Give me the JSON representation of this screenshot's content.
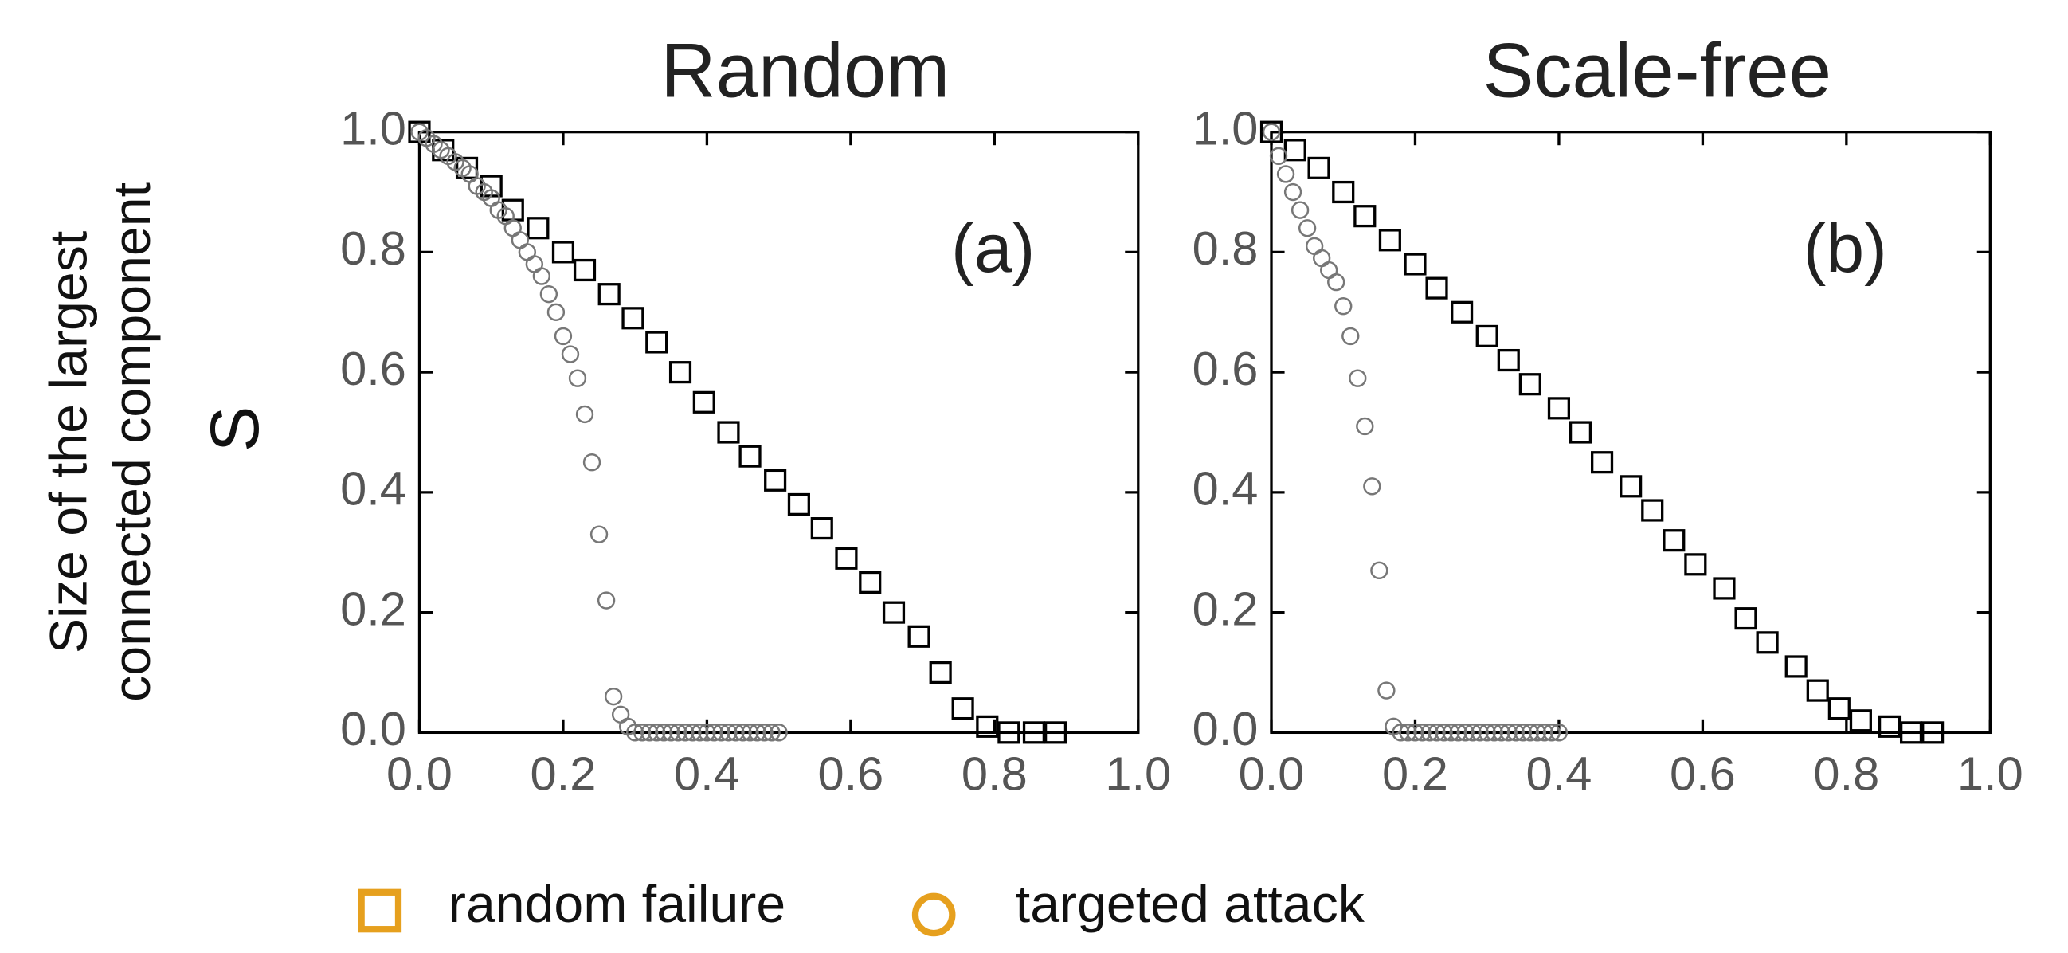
{
  "chart_data": [
    {
      "type": "scatter",
      "title": "Random",
      "annotation": "(a)",
      "ylabel": [
        "Size of the largest",
        "connected component"
      ],
      "ylabel_symbol": "S",
      "xlim": [
        0,
        1
      ],
      "ylim": [
        0,
        1
      ],
      "xticks": [
        {
          "value": 0,
          "label": "0.0"
        },
        0.2,
        0.4,
        0.6,
        0.8,
        {
          "value": 1,
          "label": "1.0"
        }
      ],
      "yticks": [
        {
          "value": 0,
          "label": "0.0"
        },
        0.2,
        0.4,
        0.6,
        0.8,
        {
          "value": 1,
          "label": "1.0"
        }
      ],
      "series": [
        {
          "name": "random failure",
          "marker": "square",
          "color": "#000000",
          "legend_color": "#e6a01e",
          "x": [
            0,
            0.033,
            0.066,
            0.1,
            0.13,
            0.165,
            0.2,
            0.23,
            0.264,
            0.297,
            0.33,
            0.363,
            0.396,
            0.43,
            0.46,
            0.495,
            0.528,
            0.56,
            0.594,
            0.627,
            0.66,
            0.695,
            0.725,
            0.756,
            0.79,
            0.82,
            0.855,
            0.885
          ],
          "values": [
            1.0,
            0.97,
            0.94,
            0.91,
            0.87,
            0.84,
            0.8,
            0.77,
            0.73,
            0.69,
            0.65,
            0.6,
            0.55,
            0.5,
            0.46,
            0.42,
            0.38,
            0.34,
            0.29,
            0.25,
            0.2,
            0.16,
            0.1,
            0.04,
            0.01,
            0,
            0,
            0
          ]
        },
        {
          "name": "targeted attack",
          "marker": "circle",
          "color": "#777777",
          "legend_color": "#e6a01e",
          "x": [
            0,
            0.01,
            0.02,
            0.03,
            0.04,
            0.05,
            0.06,
            0.07,
            0.08,
            0.09,
            0.1,
            0.11,
            0.12,
            0.13,
            0.14,
            0.15,
            0.16,
            0.17,
            0.18,
            0.19,
            0.2,
            0.21,
            0.22,
            0.23,
            0.24,
            0.25,
            0.26,
            0.27,
            0.28,
            0.29,
            0.3,
            0.31,
            0.32,
            0.33,
            0.34,
            0.35,
            0.36,
            0.37,
            0.38,
            0.39,
            0.4,
            0.41,
            0.42,
            0.43,
            0.44,
            0.45,
            0.46,
            0.47,
            0.48,
            0.49,
            0.5
          ],
          "values": [
            1.0,
            0.99,
            0.98,
            0.97,
            0.96,
            0.95,
            0.94,
            0.93,
            0.91,
            0.9,
            0.89,
            0.87,
            0.86,
            0.84,
            0.82,
            0.8,
            0.78,
            0.76,
            0.73,
            0.7,
            0.66,
            0.63,
            0.59,
            0.53,
            0.45,
            0.33,
            0.22,
            0.06,
            0.03,
            0.01,
            0,
            0,
            0,
            0,
            0,
            0,
            0,
            0,
            0,
            0,
            0,
            0,
            0,
            0,
            0,
            0,
            0,
            0,
            0,
            0,
            0
          ]
        }
      ]
    },
    {
      "type": "scatter",
      "title": "Scale-free",
      "annotation": "(b)",
      "xlim": [
        0,
        1
      ],
      "ylim": [
        0,
        1
      ],
      "xticks": [
        {
          "value": 0,
          "label": "0.0"
        },
        0.2,
        0.4,
        0.6,
        0.8,
        {
          "value": 1,
          "label": "1.0"
        }
      ],
      "yticks": [
        {
          "value": 0,
          "label": "0.0"
        },
        0.2,
        0.4,
        0.6,
        0.8,
        {
          "value": 1,
          "label": "1.0"
        }
      ],
      "series": [
        {
          "name": "random failure",
          "marker": "square",
          "color": "#000000",
          "x": [
            0,
            0.033,
            0.066,
            0.1,
            0.13,
            0.165,
            0.2,
            0.23,
            0.265,
            0.3,
            0.33,
            0.36,
            0.4,
            0.43,
            0.46,
            0.5,
            0.53,
            0.56,
            0.59,
            0.63,
            0.66,
            0.69,
            0.73,
            0.76,
            0.79,
            0.82,
            0.86,
            0.89,
            0.92
          ],
          "values": [
            1.0,
            0.97,
            0.94,
            0.9,
            0.86,
            0.82,
            0.78,
            0.74,
            0.7,
            0.66,
            0.62,
            0.58,
            0.54,
            0.5,
            0.45,
            0.41,
            0.37,
            0.32,
            0.28,
            0.24,
            0.19,
            0.15,
            0.11,
            0.07,
            0.04,
            0.02,
            0.01,
            0,
            0
          ]
        },
        {
          "name": "targeted attack",
          "marker": "circle",
          "color": "#777777",
          "x": [
            0,
            0.01,
            0.02,
            0.03,
            0.04,
            0.05,
            0.06,
            0.07,
            0.08,
            0.09,
            0.1,
            0.11,
            0.12,
            0.13,
            0.14,
            0.15,
            0.16,
            0.17,
            0.18,
            0.19,
            0.2,
            0.21,
            0.22,
            0.23,
            0.24,
            0.25,
            0.26,
            0.27,
            0.28,
            0.29,
            0.3,
            0.31,
            0.32,
            0.33,
            0.34,
            0.35,
            0.36,
            0.37,
            0.38,
            0.39,
            0.4
          ],
          "values": [
            1.0,
            0.96,
            0.93,
            0.9,
            0.87,
            0.84,
            0.81,
            0.79,
            0.77,
            0.75,
            0.71,
            0.66,
            0.59,
            0.51,
            0.41,
            0.27,
            0.07,
            0.01,
            0,
            0,
            0,
            0,
            0,
            0,
            0,
            0,
            0,
            0,
            0,
            0,
            0,
            0,
            0,
            0,
            0,
            0,
            0,
            0,
            0,
            0,
            0
          ]
        }
      ]
    }
  ]
}
